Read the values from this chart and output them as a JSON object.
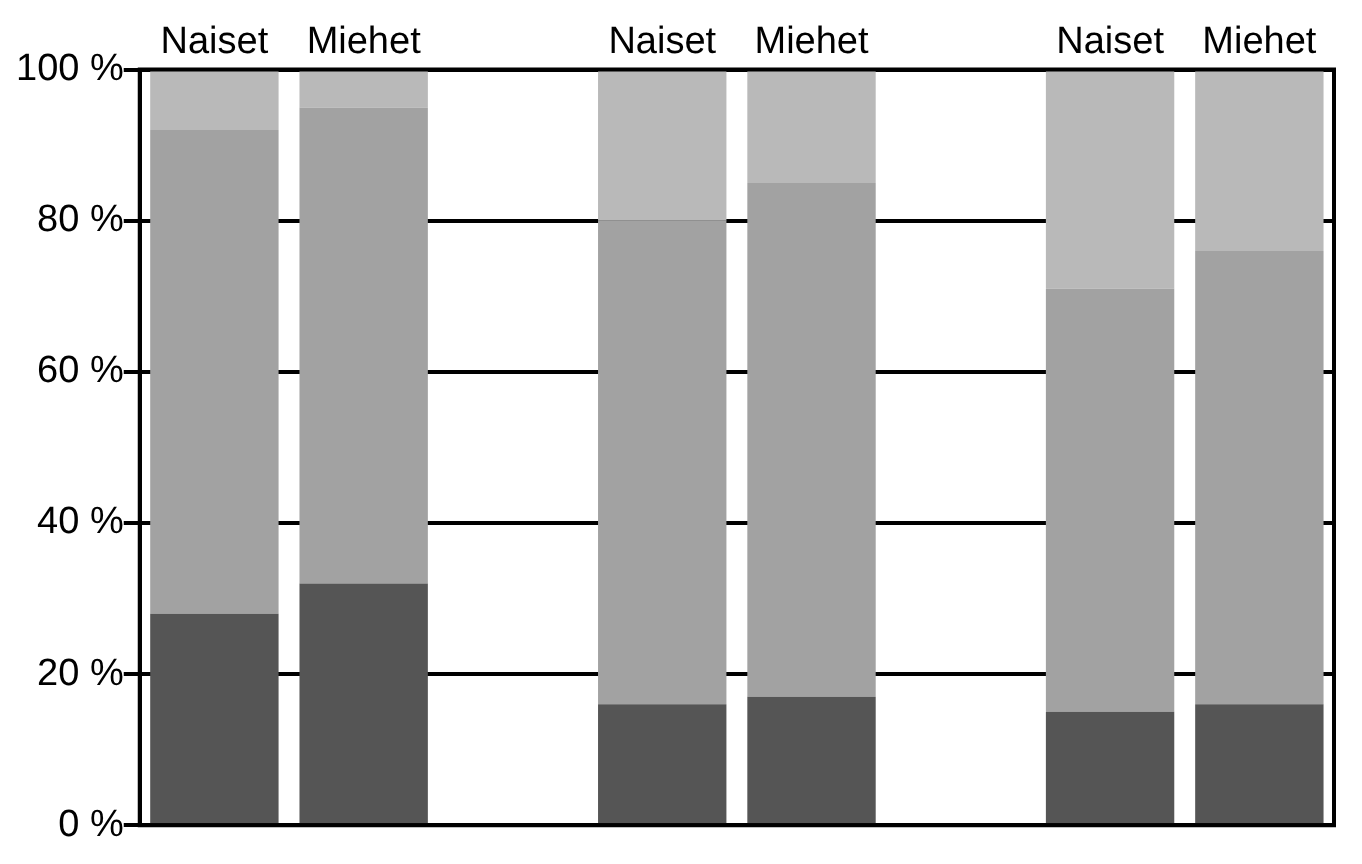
{
  "chart_data": {
    "type": "bar",
    "stacked": true,
    "categories": [
      "Naiset",
      "Miehet",
      null,
      "Naiset",
      "Miehet",
      null,
      "Naiset",
      "Miehet"
    ],
    "series": [
      {
        "color": "#555555",
        "values": [
          28,
          32,
          null,
          16,
          17,
          null,
          15,
          16
        ]
      },
      {
        "color": "#a2a2a2",
        "values": [
          64,
          63,
          null,
          64,
          68,
          null,
          56,
          60
        ]
      },
      {
        "color": "#b9b9b9",
        "values": [
          8,
          5,
          null,
          20,
          15,
          null,
          29,
          24
        ]
      }
    ],
    "ylim": [
      0,
      100
    ],
    "yticks": [
      {
        "value": 0,
        "label": "0 %"
      },
      {
        "value": 20,
        "label": "20 %"
      },
      {
        "value": 40,
        "label": "40 %"
      },
      {
        "value": 60,
        "label": "60 %"
      },
      {
        "value": 80,
        "label": "80 %"
      },
      {
        "value": 100,
        "label": "100 %"
      }
    ],
    "grid": "y",
    "legend": false
  }
}
